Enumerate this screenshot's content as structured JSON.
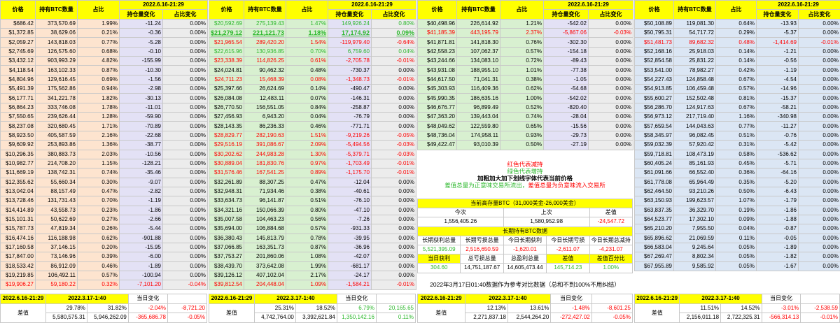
{
  "headers": {
    "price": "价格",
    "btc": "持有BTC数量",
    "pct": "占比",
    "date": "2022.6.16-21:29",
    "chg": "持仓量变化",
    "pchg": "占比变化"
  },
  "colors": {
    "red": "#ff0000",
    "green": "#2eb82e",
    "yellow": "#ffff00"
  },
  "block1": {
    "rows": [
      {
        "p": "$686.42",
        "b": "373,570.69",
        "pc": "1.99%",
        "ch": "-11.24",
        "pcc": "0.00%"
      },
      {
        "p": "$1,372.85",
        "b": "38,629.06",
        "pc": "0.21%",
        "ch": "-0.36",
        "pcc": "0.00%"
      },
      {
        "p": "$2,059.27",
        "b": "143,818.03",
        "pc": "0.77%",
        "ch": "-5.28",
        "pcc": "0.00%"
      },
      {
        "p": "$2,745.69",
        "b": "126,575.60",
        "pc": "0.68%",
        "ch": "-0.10",
        "pcc": "0.00%"
      },
      {
        "p": "$3,432.12",
        "b": "903,993.29",
        "pc": "4.82%",
        "ch": "-155.99",
        "pcc": "0.00%"
      },
      {
        "p": "$4,118.54",
        "b": "163,102.33",
        "pc": "0.87%",
        "ch": "-10.30",
        "pcc": "0.00%"
      },
      {
        "p": "$4,804.96",
        "b": "129,616.45",
        "pc": "0.69%",
        "ch": "-1.56",
        "pcc": "0.00%"
      },
      {
        "p": "$5,491.39",
        "b": "175,562.86",
        "pc": "0.94%",
        "ch": "-2.98",
        "pcc": "0.00%"
      },
      {
        "p": "$6,177.71",
        "b": "341,221.78",
        "pc": "1.82%",
        "ch": "-30.13",
        "pcc": "0.00%"
      },
      {
        "p": "$6,864.23",
        "b": "333,746.08",
        "pc": "1.78%",
        "ch": "-11.01",
        "pcc": "0.00%"
      },
      {
        "p": "$7,550.65",
        "b": "239,626.44",
        "pc": "1.28%",
        "ch": "-59.90",
        "pcc": "0.00%"
      },
      {
        "p": "$8,237.08",
        "b": "320,680.45",
        "pc": "1.71%",
        "ch": "-70.89",
        "pcc": "0.00%"
      },
      {
        "p": "$8,923.50",
        "b": "405,587.59",
        "pc": "2.16%",
        "ch": "-22.68",
        "pcc": "0.00%"
      },
      {
        "p": "$9,609.92",
        "b": "253,893.86",
        "pc": "1.36%",
        "ch": "-38.77",
        "pcc": "0.00%"
      },
      {
        "p": "$10,296.35",
        "b": "380,883.73",
        "pc": "2.03%",
        "ch": "-10.56",
        "pcc": "0.00%"
      },
      {
        "p": "$10,982.77",
        "b": "214,708.20",
        "pc": "1.15%",
        "ch": "-128.21",
        "pcc": "0.00%"
      },
      {
        "p": "$11,669.19",
        "b": "138,742.31",
        "pc": "0.74%",
        "ch": "-35.46",
        "pcc": "0.00%"
      },
      {
        "p": "$12,355.62",
        "b": "55,660.34",
        "pc": "0.30%",
        "ch": "-9.07",
        "pcc": "0.00%"
      },
      {
        "p": "$13,042.04",
        "b": "88,157.49",
        "pc": "0.47%",
        "ch": "-2.82",
        "pcc": "0.00%"
      },
      {
        "p": "$13,728.46",
        "b": "131,731.43",
        "pc": "0.70%",
        "ch": "-1.19",
        "pcc": "0.00%"
      },
      {
        "p": "$14,414.89",
        "b": "43,558.73",
        "pc": "0.23%",
        "ch": "-1.86",
        "pcc": "0.00%"
      },
      {
        "p": "$15,101.31",
        "b": "50,622.69",
        "pc": "0.27%",
        "ch": "-2.66",
        "pcc": "0.00%"
      },
      {
        "p": "$15,787.73",
        "b": "47,819.34",
        "pc": "0.26%",
        "ch": "-5.44",
        "pcc": "0.00%"
      },
      {
        "p": "$16,474.16",
        "b": "116,188.98",
        "pc": "0.62%",
        "ch": "-901.88",
        "pcc": "0.00%"
      },
      {
        "p": "$17,160.58",
        "b": "37,146.15",
        "pc": "0.20%",
        "ch": "-15.95",
        "pcc": "0.00%"
      },
      {
        "p": "$17,847.00",
        "b": "73,146.96",
        "pc": "0.39%",
        "ch": "-6.00",
        "pcc": "0.00%"
      },
      {
        "p": "$18,533.42",
        "b": "86,912.09",
        "pc": "0.46%",
        "ch": "-1.89",
        "pcc": "0.00%"
      },
      {
        "p": "$19,219.85",
        "b": "106,492.11",
        "pc": "0.57%",
        "ch": "-100.94",
        "pcc": "0.00%"
      },
      {
        "p": "$19,906.27",
        "b": "59,180.22",
        "pc": "0.32%",
        "ch": "-7,101.20",
        "pcc": "-0.04%",
        "red": true
      }
    ]
  },
  "block2": {
    "rows": [
      {
        "p": "$20,592.69",
        "b": "275,139.43",
        "pc": "1.47%",
        "ch": "149,926.24",
        "pcc": "0.80%",
        "col": "grn"
      },
      {
        "p": "$21,279.12",
        "b": "221,121.73",
        "pc": "1.18%",
        "ch": "17,174.92",
        "pcc": "0.09%",
        "col": "grn",
        "ul": true
      },
      {
        "p": "$21,965.54",
        "b": "289,420.20",
        "pc": "1.54%",
        "ch": "-119,979.40",
        "pcc": "-0.64%",
        "col": "red"
      },
      {
        "p": "$22,615.96",
        "b": "130,936.85",
        "pc": "0.70%",
        "ch": "6,759.60",
        "pcc": "0.04%",
        "col": "grn"
      },
      {
        "p": "$23,338.39",
        "b": "114,826.25",
        "pc": "0.61%",
        "ch": "-2,705.78",
        "pcc": "-0.01%",
        "col": "red"
      },
      {
        "p": "$24,024.81",
        "b": "90,462.32",
        "pc": "0.48%",
        "ch": "-730.37",
        "pcc": "0.00%"
      },
      {
        "p": "$24,711.23",
        "b": "15,468.39",
        "pc": "0.08%",
        "ch": "-1,348.73",
        "pcc": "-0.01%",
        "col": "red"
      },
      {
        "p": "$25,397.66",
        "b": "26,624.69",
        "pc": "0.14%",
        "ch": "-490.47",
        "pcc": "0.00%"
      },
      {
        "p": "$26,084.08",
        "b": "12,483.11",
        "pc": "0.07%",
        "ch": "-146.31",
        "pcc": "0.00%"
      },
      {
        "p": "$26,770.50",
        "b": "156,551.05",
        "pc": "0.84%",
        "ch": "-258.87",
        "pcc": "0.00%"
      },
      {
        "p": "$27,456.93",
        "b": "6,943.20",
        "pc": "0.04%",
        "ch": "-76.79",
        "pcc": "0.00%"
      },
      {
        "p": "$28,143.35",
        "b": "86,236.33",
        "pc": "0.46%",
        "ch": "-771.71",
        "pcc": "0.00%"
      },
      {
        "p": "$28,829.77",
        "b": "282,190.63",
        "pc": "1.51%",
        "ch": "-9,219.26",
        "pcc": "-0.05%",
        "col": "red"
      },
      {
        "p": "$29,516.19",
        "b": "391,086.67",
        "pc": "2.09%",
        "ch": "-5,494.56",
        "pcc": "-0.03%",
        "col": "red"
      },
      {
        "p": "$30,202.62",
        "b": "244,983.28",
        "pc": "1.30%",
        "ch": "-5,379.71",
        "pcc": "-0.03%",
        "col": "red"
      },
      {
        "p": "$30,889.04",
        "b": "181,830.76",
        "pc": "0.97%",
        "ch": "-1,703.49",
        "pcc": "-0.01%",
        "col": "red"
      },
      {
        "p": "$31,576.46",
        "b": "167,541.25",
        "pc": "0.89%",
        "ch": "-1,175.70",
        "pcc": "-0.01%",
        "col": "red"
      },
      {
        "p": "$32,261.89",
        "b": "88,307.25",
        "pc": "0.47%",
        "ch": "-12.04",
        "pcc": "0.00%"
      },
      {
        "p": "$32,948.31",
        "b": "71,934.46",
        "pc": "0.38%",
        "ch": "-40.61",
        "pcc": "0.00%"
      },
      {
        "p": "$33,634.73",
        "b": "96,141.87",
        "pc": "0.51%",
        "ch": "-76.10",
        "pcc": "0.00%"
      },
      {
        "p": "$34,321.16",
        "b": "150,066.39",
        "pc": "0.80%",
        "ch": "-47.10",
        "pcc": "0.00%"
      },
      {
        "p": "$35,007.58",
        "b": "104,463.23",
        "pc": "0.56%",
        "ch": "-7.26",
        "pcc": "0.00%"
      },
      {
        "p": "$35,694.00",
        "b": "106,884.68",
        "pc": "0.57%",
        "ch": "-931.33",
        "pcc": "0.00%"
      },
      {
        "p": "$36,380.43",
        "b": "145,813.79",
        "pc": "0.78%",
        "ch": "-39.95",
        "pcc": "0.00%"
      },
      {
        "p": "$37,066.85",
        "b": "163,351.73",
        "pc": "0.87%",
        "ch": "-36.96",
        "pcc": "0.00%"
      },
      {
        "p": "$37,753.27",
        "b": "201,860.06",
        "pc": "1.08%",
        "ch": "-42.07",
        "pcc": "0.00%"
      },
      {
        "p": "$38,439.70",
        "b": "373,642.08",
        "pc": "1.99%",
        "ch": "-681.17",
        "pcc": "0.00%"
      },
      {
        "p": "$39,126.12",
        "b": "407,102.04",
        "pc": "2.17%",
        "ch": "-24.17",
        "pcc": "0.00%"
      },
      {
        "p": "$39,812.54",
        "b": "204,448.04",
        "pc": "1.09%",
        "ch": "-1,584.21",
        "pcc": "-0.01%",
        "col": "red"
      }
    ]
  },
  "block3": {
    "rows": [
      {
        "p": "$40,498.96",
        "b": "226,614.92",
        "pc": "1.21%",
        "ch": "-542.02",
        "pcc": "0.00%"
      },
      {
        "p": "$41,185.39",
        "b": "443,195.79",
        "pc": "2.37%",
        "ch": "-5,867.06",
        "pcc": "-0.03%",
        "col": "red"
      },
      {
        "p": "$41,871.81",
        "b": "141,818.30",
        "pc": "0.76%",
        "ch": "-302.30",
        "pcc": "0.00%"
      },
      {
        "p": "$42,558.23",
        "b": "107,062.37",
        "pc": "0.57%",
        "ch": "-154.18",
        "pcc": "0.00%"
      },
      {
        "p": "$43,244.66",
        "b": "134,083.10",
        "pc": "0.72%",
        "ch": "-89.43",
        "pcc": "0.00%"
      },
      {
        "p": "$43,931.08",
        "b": "188,955.10",
        "pc": "1.01%",
        "ch": "-77.38",
        "pcc": "0.00%"
      },
      {
        "p": "$44,617.50",
        "b": "71,041.31",
        "pc": "0.38%",
        "ch": "-1.05",
        "pcc": "0.00%"
      },
      {
        "p": "$45,303.93",
        "b": "116,409.36",
        "pc": "0.62%",
        "ch": "-54.68",
        "pcc": "0.00%"
      },
      {
        "p": "$45,990.35",
        "b": "186,635.16",
        "pc": "1.00%",
        "ch": "-542.02",
        "pcc": "0.00%"
      },
      {
        "p": "$46,676.77",
        "b": "96,899.49",
        "pc": "0.52%",
        "ch": "-820.40",
        "pcc": "0.00%"
      },
      {
        "p": "$47,363.20",
        "b": "139,443.04",
        "pc": "0.74%",
        "ch": "-28.04",
        "pcc": "0.00%"
      },
      {
        "p": "$48,049.62",
        "b": "122,559.80",
        "pc": "0.65%",
        "ch": "-15.56",
        "pcc": "0.00%"
      },
      {
        "p": "$48,736.04",
        "b": "174,958.11",
        "pc": "0.93%",
        "ch": "-29.73",
        "pcc": "0.00%"
      },
      {
        "p": "$49,422.47",
        "b": "93,010.39",
        "pc": "0.50%",
        "ch": "-27.19",
        "pcc": "0.00%"
      }
    ]
  },
  "block4": {
    "rows": [
      {
        "p": "$50,108.89",
        "b": "119,081.30",
        "pc": "0.64%",
        "ch": "-13.93",
        "pcc": "0.00%"
      },
      {
        "p": "$50,795.31",
        "b": "54,717.72",
        "pc": "0.29%",
        "ch": "-5.37",
        "pcc": "0.00%"
      },
      {
        "p": "$51,481.73",
        "b": "89,682.32",
        "pc": "0.48%",
        "ch": "-1,414.69",
        "pcc": "-0.01%",
        "col": "red"
      },
      {
        "p": "$52,168.16",
        "b": "25,918.03",
        "pc": "0.14%",
        "ch": "-1.21",
        "pcc": "0.00%"
      },
      {
        "p": "$52,854.58",
        "b": "25,831.22",
        "pc": "0.14%",
        "ch": "-0.56",
        "pcc": "0.00%"
      },
      {
        "p": "$53,541.00",
        "b": "78,982.27",
        "pc": "0.42%",
        "ch": "-1.19",
        "pcc": "0.00%"
      },
      {
        "p": "$54,227.43",
        "b": "124,858.48",
        "pc": "0.67%",
        "ch": "-4.54",
        "pcc": "0.00%"
      },
      {
        "p": "$54,913.85",
        "b": "106,459.48",
        "pc": "0.57%",
        "ch": "-14.96",
        "pcc": "0.00%"
      },
      {
        "p": "$55,600.27",
        "b": "152,502.48",
        "pc": "0.81%",
        "ch": "-15.37",
        "pcc": "0.00%"
      },
      {
        "p": "$56,286.70",
        "b": "124,917.63",
        "pc": "0.67%",
        "ch": "-58.21",
        "pcc": "0.00%"
      },
      {
        "p": "$56,973.12",
        "b": "217,719.40",
        "pc": "1.16%",
        "ch": "-340.98",
        "pcc": "0.00%"
      },
      {
        "p": "$57,659.54",
        "b": "144,043.63",
        "pc": "0.77%",
        "ch": "-11.27",
        "pcc": "0.00%"
      },
      {
        "p": "$58,345.97",
        "b": "96,082.45",
        "pc": "0.51%",
        "ch": "-0.76",
        "pcc": "0.00%"
      },
      {
        "p": "$59,032.39",
        "b": "57,920.42",
        "pc": "0.31%",
        "ch": "-5.42",
        "pcc": "0.00%"
      },
      {
        "p": "$59,718.81",
        "b": "108,473.19",
        "pc": "0.58%",
        "ch": "-536.62",
        "pcc": "0.00%"
      },
      {
        "p": "$60,405.24",
        "b": "85,161.93",
        "pc": "0.45%",
        "ch": "-5.71",
        "pcc": "0.00%"
      },
      {
        "p": "$61,091.66",
        "b": "66,552.40",
        "pc": "0.36%",
        "ch": "-64.16",
        "pcc": "0.00%"
      },
      {
        "p": "$61,778.08",
        "b": "65,964.49",
        "pc": "0.35%",
        "ch": "-5.20",
        "pcc": "0.00%"
      },
      {
        "p": "$62,464.50",
        "b": "93,210.26",
        "pc": "0.50%",
        "ch": "-6.43",
        "pcc": "0.00%"
      },
      {
        "p": "$63,150.93",
        "b": "199,623.57",
        "pc": "1.07%",
        "ch": "-1.79",
        "pcc": "0.00%"
      },
      {
        "p": "$63,837.35",
        "b": "36,329.70",
        "pc": "0.19%",
        "ch": "-1.86",
        "pcc": "0.00%"
      },
      {
        "p": "$64,523.77",
        "b": "17,302.10",
        "pc": "0.09%",
        "ch": "-1.88",
        "pcc": "0.00%"
      },
      {
        "p": "$65,210.20",
        "b": "7,955.50",
        "pc": "0.04%",
        "ch": "-0.87",
        "pcc": "0.00%"
      },
      {
        "p": "$65,896.62",
        "b": "21,069.59",
        "pc": "0.11%",
        "ch": "-0.05",
        "pcc": "0.00%"
      },
      {
        "p": "$66,583.04",
        "b": "9,245.64",
        "pc": "0.05%",
        "ch": "-1.89",
        "pcc": "0.00%"
      },
      {
        "p": "$67,269.47",
        "b": "8,802.34",
        "pc": "0.05%",
        "ch": "-1.82",
        "pcc": "0.00%"
      },
      {
        "p": "$67,955.89",
        "b": "9,585.92",
        "pc": "0.05%",
        "ch": "-1.67",
        "pcc": "0.00%"
      }
    ]
  },
  "note": {
    "line1": "红色代表减持",
    "line2": "绿色代表增持",
    "line3": "加粗加大加下划线字体代表当前价格",
    "line4a": "差值总量为正意味交易所流出，",
    "line4b": "差值总量为负意味流入交易所"
  },
  "mid": {
    "title1": "当前高存量BTC（31,000美金-26,000美金）",
    "today": "今次",
    "last": "上次",
    "diff": "差值",
    "today_v": "1,556,405.26",
    "last_v": "1,580,952.98",
    "diff_v": "-24,547.72",
    "title2": "长期持有BTC数据",
    "h": [
      "长期获利总量",
      "长期亏损总量",
      "今日长期获利",
      "今日长期亏损",
      "今日长期总减持"
    ],
    "v": [
      "5,521,395.09",
      "2,516,650.59",
      "-1,620.01",
      "-2,611.07",
      "-4,231.07"
    ],
    "h2": [
      "当日获利",
      "总亏损总量",
      "总盈利总量",
      "差值",
      "差值百分比"
    ],
    "v2": [
      "304.60",
      "14,751,187.67",
      "14,605,473.44",
      "145,714.23",
      "1.00%"
    ]
  },
  "footnote": "2022年3月17日01:40数据作为参考对比数据（总和不到100%不用纠结）",
  "bottom": {
    "date_now": "2022.6.16-21:29",
    "date_ref": "2022.3.17-1:40",
    "chg": "当日变化",
    "diff": "差值",
    "b1": {
      "pa": "29.78%",
      "pb": "31.82%",
      "pc": "-2.04%",
      "pd": "-8,721.20",
      "va": "5,580,575.31",
      "vb": "5,946,262.09",
      "vc": "-365,686.78",
      "vd": "-0.05%"
    },
    "b2": {
      "pa": "25.31%",
      "pb": "18.52%",
      "pc": "6.79%",
      "pd": "20,165.65",
      "va": "4,742,764.00",
      "vb": "3,392,621.84",
      "vc": "1,350,142.16",
      "vd": "0.11%"
    },
    "b3": {
      "pa": "12.13%",
      "pb": "13.61%",
      "pc": "-1.48%",
      "pd": "-8,601.25",
      "va": "2,271,837.18",
      "vb": "2,544,264.20",
      "vc": "-272,427.02",
      "vd": "-0.05%"
    },
    "b4": {
      "pa": "11.51%",
      "pb": "14.52%",
      "pc": "-3.01%",
      "pd": "-2,538.59",
      "va": "2,156,011.18",
      "vb": "2,722,325.31",
      "vc": "-566,314.13",
      "vd": "-0.01%"
    }
  }
}
